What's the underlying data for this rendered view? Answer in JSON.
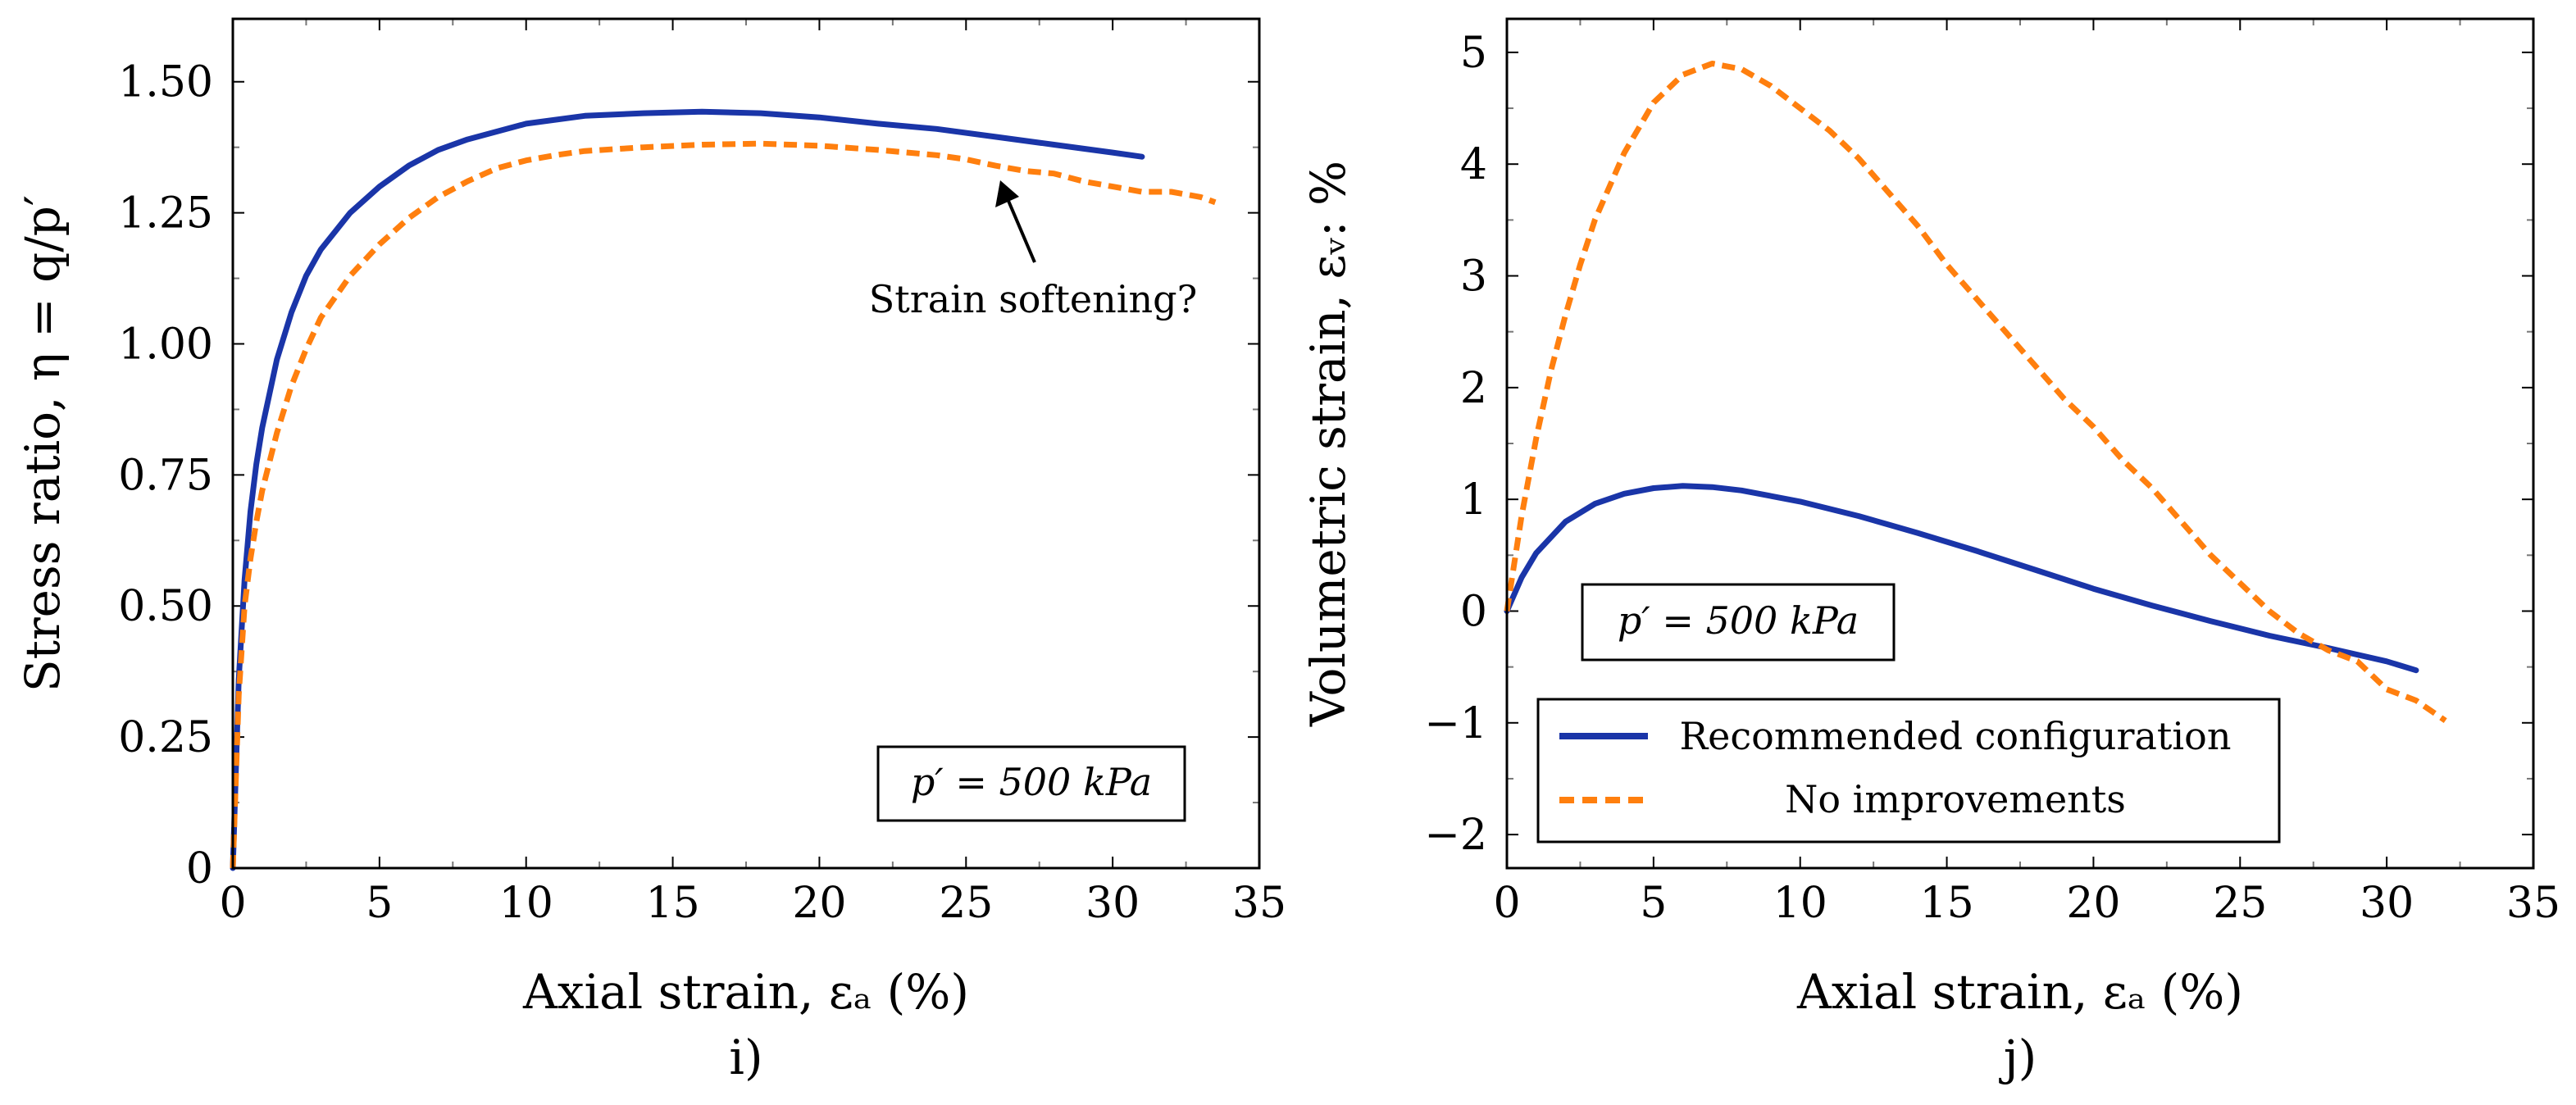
{
  "chart_data": [
    {
      "type": "line",
      "panel_label": "i)",
      "xlabel": "Axial strain, εₐ (%)",
      "ylabel": "Stress ratio, η = q/p′",
      "xlim": [
        0,
        35
      ],
      "ylim": [
        0,
        1.62
      ],
      "xticks": [
        0,
        5,
        10,
        15,
        20,
        25,
        30,
        35
      ],
      "xtick_labels": [
        "0",
        "5",
        "10",
        "15",
        "20",
        "25",
        "30",
        "35"
      ],
      "yticks": [
        0,
        0.25,
        0.5,
        0.75,
        1.0,
        1.25,
        1.5
      ],
      "ytick_labels": [
        "0",
        "0.25",
        "0.50",
        "0.75",
        "1.00",
        "1.25",
        "1.50"
      ],
      "grid": false,
      "box_text": "p′ = 500 kPa",
      "annotation": {
        "text": "Strain softening?",
        "point": [
          26.2,
          1.31
        ]
      },
      "series": [
        {
          "name": "Recommended configuration",
          "color": "#1a35a8",
          "style": "solid",
          "x": [
            0,
            0.2,
            0.4,
            0.6,
            0.8,
            1.0,
            1.5,
            2,
            2.5,
            3,
            4,
            5,
            6,
            7,
            8,
            10,
            12,
            14,
            16,
            18,
            20,
            22,
            24,
            26,
            28,
            30,
            31
          ],
          "y": [
            0,
            0.36,
            0.55,
            0.68,
            0.77,
            0.84,
            0.97,
            1.06,
            1.13,
            1.18,
            1.25,
            1.3,
            1.34,
            1.37,
            1.39,
            1.42,
            1.435,
            1.44,
            1.443,
            1.44,
            1.432,
            1.42,
            1.41,
            1.395,
            1.38,
            1.365,
            1.357
          ]
        },
        {
          "name": "No improvements",
          "color": "#ff7f0e",
          "style": "dashed",
          "x": [
            0,
            0.2,
            0.4,
            0.6,
            0.8,
            1.0,
            1.5,
            2,
            2.5,
            3,
            4,
            5,
            6,
            7,
            8,
            9,
            10,
            11,
            12,
            14,
            16,
            18,
            20,
            22,
            24,
            25,
            26,
            27,
            28,
            29,
            30,
            31,
            32,
            33,
            33.5
          ],
          "y": [
            0,
            0.33,
            0.5,
            0.59,
            0.66,
            0.72,
            0.83,
            0.92,
            0.99,
            1.05,
            1.13,
            1.19,
            1.24,
            1.28,
            1.31,
            1.335,
            1.35,
            1.36,
            1.368,
            1.375,
            1.38,
            1.382,
            1.378,
            1.37,
            1.36,
            1.352,
            1.34,
            1.33,
            1.325,
            1.31,
            1.3,
            1.29,
            1.29,
            1.28,
            1.27
          ]
        }
      ]
    },
    {
      "type": "line",
      "panel_label": "j)",
      "xlabel": "Axial strain, εₐ (%)",
      "ylabel": "Volumetric strain, εᵥ: %",
      "xlim": [
        0,
        35
      ],
      "ylim": [
        -2.3,
        5.3
      ],
      "xticks": [
        0,
        5,
        10,
        15,
        20,
        25,
        30,
        35
      ],
      "xtick_labels": [
        "0",
        "5",
        "10",
        "15",
        "20",
        "25",
        "30",
        "35"
      ],
      "yticks": [
        -2,
        -1,
        0,
        1,
        2,
        3,
        4,
        5
      ],
      "ytick_labels": [
        "−2",
        "−1",
        "0",
        "1",
        "2",
        "3",
        "4",
        "5"
      ],
      "grid": false,
      "box_text": "p′ = 500 kPa",
      "legend_position": "bottom-left",
      "series": [
        {
          "name": "Recommended configuration",
          "color": "#1a35a8",
          "style": "solid",
          "x": [
            0,
            0.5,
            1,
            2,
            3,
            4,
            5,
            6,
            7,
            8,
            10,
            12,
            14,
            16,
            18,
            20,
            22,
            24,
            26,
            28,
            30,
            31
          ],
          "y": [
            0,
            0.3,
            0.52,
            0.8,
            0.96,
            1.05,
            1.1,
            1.12,
            1.11,
            1.08,
            0.98,
            0.85,
            0.7,
            0.54,
            0.37,
            0.2,
            0.05,
            -0.09,
            -0.22,
            -0.33,
            -0.45,
            -0.53
          ]
        },
        {
          "name": "No improvements",
          "color": "#ff7f0e",
          "style": "dashed",
          "x": [
            0,
            0.5,
            1,
            1.5,
            2,
            2.5,
            3,
            4,
            5,
            6,
            7,
            8,
            9,
            10,
            11,
            12,
            13,
            14,
            15,
            16,
            17,
            18,
            19,
            20,
            21,
            22,
            23,
            24,
            25,
            26,
            27,
            28,
            29,
            30,
            31,
            32
          ],
          "y": [
            0,
            0.85,
            1.55,
            2.15,
            2.65,
            3.1,
            3.5,
            4.1,
            4.55,
            4.8,
            4.9,
            4.85,
            4.7,
            4.5,
            4.3,
            4.05,
            3.75,
            3.45,
            3.1,
            2.8,
            2.5,
            2.2,
            1.9,
            1.65,
            1.35,
            1.1,
            0.8,
            0.5,
            0.25,
            0.0,
            -0.2,
            -0.35,
            -0.45,
            -0.7,
            -0.8,
            -0.98
          ]
        }
      ]
    }
  ]
}
